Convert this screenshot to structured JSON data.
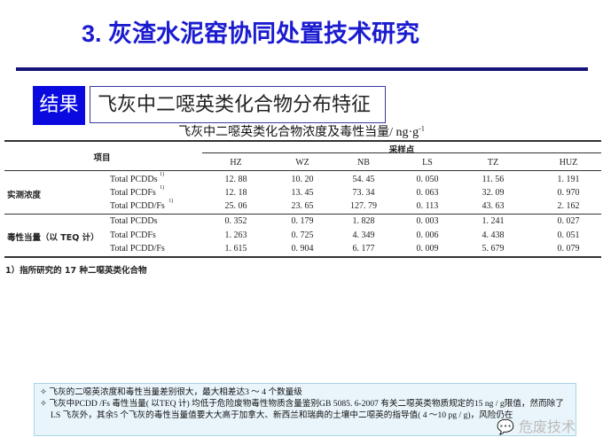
{
  "title": "3. 灰渣水泥窑协同处置技术研究",
  "tag": "结果",
  "subtitle": "飞灰中二噁英类化合物分布特征",
  "table": {
    "caption": "飞灰中二噁英类化合物浓度及毒性当量/ ng·g",
    "caption_sup": "-1",
    "item_header": "项目",
    "group_header": "采样点",
    "columns": [
      "HZ",
      "WZ",
      "NB",
      "LS",
      "TZ",
      "HUZ"
    ],
    "groups": [
      {
        "label": "实测浓度",
        "rows": [
          {
            "name": "Total PCDDs",
            "sup": "1)",
            "values": [
              "12. 88",
              "10. 20",
              "54. 45",
              "0. 050",
              "11. 56",
              "1. 191"
            ]
          },
          {
            "name": "Total PCDFs",
            "sup": "1)",
            "values": [
              "12. 18",
              "13. 45",
              "73. 34",
              "0. 063",
              "32. 09",
              "0. 970"
            ]
          },
          {
            "name": "Total PCDD/Fs",
            "sup": "1)",
            "values": [
              "25. 06",
              "23. 65",
              "127. 79",
              "0. 113",
              "43. 63",
              "2. 162"
            ]
          }
        ]
      },
      {
        "label": "毒性当量（以 TEQ 计）",
        "rows": [
          {
            "name": "Total PCDDs",
            "sup": "",
            "values": [
              "0. 352",
              "0. 179",
              "1. 828",
              "0. 003",
              "1. 241",
              "0. 027"
            ]
          },
          {
            "name": "Total PCDFs",
            "sup": "",
            "values": [
              "1. 263",
              "0. 725",
              "4. 349",
              "0. 006",
              "4. 438",
              "0. 051"
            ]
          },
          {
            "name": "Total PCDD/Fs",
            "sup": "",
            "values": [
              "1. 615",
              "0. 904",
              "6. 177",
              "0. 009",
              "5. 679",
              "0. 079"
            ]
          }
        ]
      }
    ],
    "footnote": "1）指所研究的 17 种二噁英类化合物"
  },
  "notes": [
    "✧ 飞灰的二噁英浓度和毒性当量差别很大，最大相差达3 ～ 4 个数量级",
    "✧ 飞灰中PCDD /Fs 毒性当量( 以TEQ 计) 均低于危险废物毒性物质含量鉴别GB 5085. 6-2007 有关二噁英类物质规定的15 ng / g限值，然而除了LS 飞灰外，其余5 个飞灰的毒性当量值要大大高于加拿大、新西兰和瑞典的土壤中二噁英的指导值( 4 ～10 pg / g)，风险仍在"
  ],
  "watermark": "危废技术"
}
